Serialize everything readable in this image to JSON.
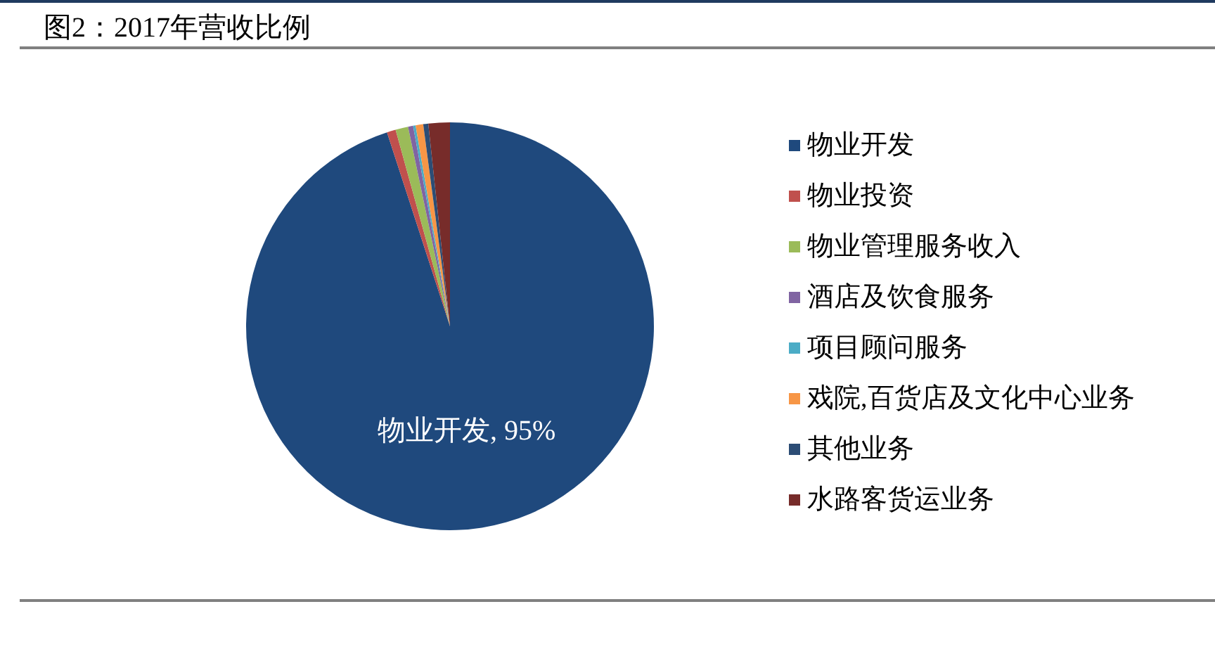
{
  "chart_data": {
    "type": "pie",
    "title": "图2：2017年营收比例",
    "categories": [
      "物业开发",
      "物业投资",
      "物业管理服务收入",
      "酒店及饮食服务",
      "项目顾问服务",
      "戏院,百货店及文化中心业务",
      "其他业务",
      "水路客货运业务"
    ],
    "values": [
      95,
      0.7,
      1.0,
      0.4,
      0.2,
      0.6,
      0.4,
      1.7
    ],
    "colors": [
      "#1f497d",
      "#c0504d",
      "#9bbb59",
      "#8064a2",
      "#4bacc6",
      "#f79646",
      "#2c4d75",
      "#772c2a"
    ],
    "value_labels": [
      "物业开发, 95%",
      null,
      null,
      null,
      null,
      null,
      null,
      null
    ],
    "legend": "right"
  }
}
